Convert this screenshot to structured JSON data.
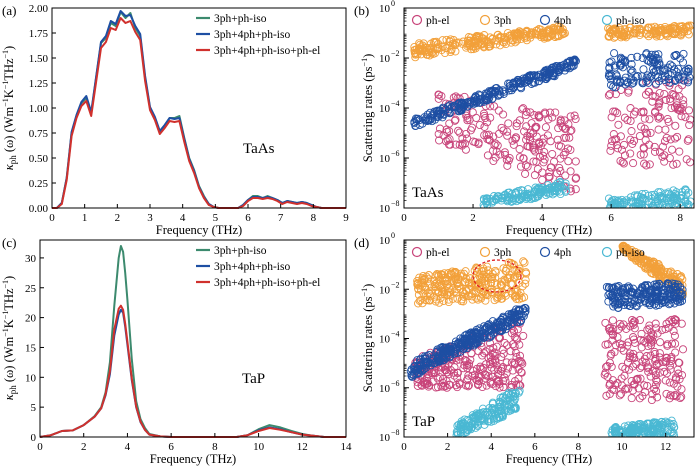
{
  "chart_data": [
    {
      "panel": "(a)",
      "type": "line",
      "annotation": "TaAs",
      "xlabel": "Frequency (THz)",
      "ylabel_main": "κ",
      "ylabel_sub": "ph",
      "ylabel_rest": " (ω) (Wm",
      "ylabel_sup1": "−1",
      "ylabel_mid": "K",
      "ylabel_sup2": "−1",
      "ylabel_end": "THz",
      "ylabel_sup3": "−1",
      "ylabel_close": ")",
      "xlim": [
        0,
        9
      ],
      "ylim": [
        0,
        2.0
      ],
      "xticks": [
        "0",
        "1",
        "2",
        "3",
        "4",
        "5",
        "6",
        "7",
        "8",
        "9"
      ],
      "yticks": [
        "0.00",
        "0.25",
        "0.50",
        "0.75",
        "1.00",
        "1.25",
        "1.50",
        "1.75",
        "2.00"
      ],
      "x": [
        0,
        0.15,
        0.3,
        0.45,
        0.6,
        0.75,
        0.9,
        1.05,
        1.2,
        1.35,
        1.5,
        1.65,
        1.8,
        1.95,
        2.1,
        2.25,
        2.4,
        2.55,
        2.7,
        2.85,
        3.0,
        3.15,
        3.3,
        3.45,
        3.6,
        3.75,
        3.9,
        4.05,
        4.2,
        4.35,
        4.5,
        4.65,
        4.8,
        4.95,
        5.1,
        5.25,
        5.4,
        5.55,
        5.7,
        5.85,
        6.0,
        6.15,
        6.3,
        6.45,
        6.6,
        6.75,
        6.9,
        7.05,
        7.2,
        7.35,
        7.5,
        7.65,
        7.8,
        7.95,
        8.1,
        8.25,
        8.5,
        9.0
      ],
      "series": [
        {
          "name": "3ph+ph-iso",
          "color": "#3c8a6e",
          "values": [
            0,
            0,
            0.05,
            0.3,
            0.75,
            0.92,
            1.05,
            1.1,
            0.95,
            1.3,
            1.65,
            1.7,
            1.85,
            1.82,
            1.96,
            1.9,
            1.95,
            1.8,
            1.72,
            1.3,
            1.0,
            0.9,
            0.76,
            0.82,
            0.9,
            0.9,
            0.92,
            0.7,
            0.5,
            0.38,
            0.22,
            0.12,
            0.04,
            0.01,
            0,
            0,
            0,
            0,
            0,
            0.03,
            0.08,
            0.12,
            0.12,
            0.1,
            0.12,
            0.1,
            0.08,
            0.05,
            0.07,
            0.06,
            0.05,
            0.06,
            0.05,
            0.03,
            0.01,
            0,
            0,
            0
          ]
        },
        {
          "name": "3ph+4ph+ph-iso",
          "color": "#1e4fa3",
          "values": [
            0,
            0,
            0.05,
            0.3,
            0.76,
            0.93,
            1.06,
            1.12,
            0.96,
            1.31,
            1.66,
            1.72,
            1.87,
            1.84,
            1.97,
            1.92,
            1.93,
            1.82,
            1.74,
            1.32,
            1.01,
            0.91,
            0.77,
            0.83,
            0.9,
            0.89,
            0.9,
            0.69,
            0.49,
            0.37,
            0.21,
            0.11,
            0.04,
            0.01,
            0,
            0,
            0,
            0,
            0,
            0.03,
            0.08,
            0.11,
            0.11,
            0.1,
            0.11,
            0.1,
            0.08,
            0.05,
            0.07,
            0.06,
            0.05,
            0.06,
            0.05,
            0.03,
            0.01,
            0,
            0,
            0
          ]
        },
        {
          "name": "3ph+4ph+ph-iso+ph-el",
          "color": "#d0312d",
          "values": [
            0,
            0,
            0.04,
            0.28,
            0.72,
            0.9,
            1.02,
            1.07,
            0.92,
            1.26,
            1.6,
            1.66,
            1.8,
            1.78,
            1.9,
            1.85,
            1.87,
            1.76,
            1.68,
            1.27,
            0.98,
            0.88,
            0.74,
            0.8,
            0.87,
            0.86,
            0.87,
            0.66,
            0.47,
            0.35,
            0.2,
            0.1,
            0.03,
            0.01,
            0,
            0,
            0,
            0,
            0,
            0.02,
            0.07,
            0.1,
            0.1,
            0.09,
            0.1,
            0.09,
            0.07,
            0.04,
            0.06,
            0.05,
            0.04,
            0.05,
            0.04,
            0.02,
            0.01,
            0,
            0,
            0
          ]
        }
      ],
      "legend_position": "top-right"
    },
    {
      "panel": "(b)",
      "type": "scatter",
      "annotation": "TaAs",
      "xlabel": "Frequency (THz)",
      "ylabel": "Scattering rates (ps",
      "ylabel_sup": "−1",
      "ylabel_close": ")",
      "yscale": "log",
      "xlim": [
        0,
        8.4
      ],
      "ylim_exp": [
        -8,
        0
      ],
      "xticks": [
        "0",
        "2",
        "4",
        "6",
        "8"
      ],
      "yticks_exp": [
        "−8",
        "−6",
        "−4",
        "−2",
        "0"
      ],
      "series": [
        {
          "name": "ph-el",
          "color": "#c8447a",
          "ranges": [
            [
              1.0,
              5.0,
              -5.3,
              -3.3,
              -7.5,
              -4.3
            ],
            [
              5.9,
              8.3,
              -6.3,
              -2.9,
              -6.3,
              -2.9
            ]
          ]
        },
        {
          "name": "3ph",
          "color": "#f2a03a",
          "ranges": [
            [
              0.3,
              4.7,
              -2.0,
              -1.4,
              -1.1,
              -0.7
            ],
            [
              5.9,
              8.3,
              -1.2,
              -0.8,
              -1.1,
              -0.7
            ]
          ]
        },
        {
          "name": "4ph",
          "color": "#1e4fa3",
          "ranges": [
            [
              0.3,
              5.0,
              -4.8,
              -4.4,
              -2.4,
              -2.0
            ],
            [
              5.9,
              8.3,
              -3.2,
              -1.8,
              -3.0,
              -1.8
            ]
          ]
        },
        {
          "name": "ph-iso",
          "color": "#4ab8d3",
          "ranges": [
            [
              2.3,
              4.7,
              -8.0,
              -7.6,
              -7.4,
              -6.9
            ],
            [
              5.9,
              8.3,
              -8.0,
              -7.6,
              -8.0,
              -7.2
            ]
          ]
        }
      ],
      "legend_position": "top"
    },
    {
      "panel": "(c)",
      "type": "line",
      "annotation": "TaP",
      "xlabel": "Frequency (THz)",
      "ylabel_main": "κ",
      "ylabel_sub": "ph",
      "ylabel_rest": " (ω) (Wm",
      "ylabel_sup1": "−1",
      "ylabel_mid": "K",
      "ylabel_sup2": "−1",
      "ylabel_end": "THz",
      "ylabel_sup3": "−1",
      "ylabel_close": ")",
      "xlim": [
        0,
        14
      ],
      "ylim": [
        0,
        33
      ],
      "xticks": [
        "0",
        "2",
        "4",
        "6",
        "8",
        "10",
        "12",
        "14"
      ],
      "yticks": [
        "0",
        "5",
        "10",
        "15",
        "20",
        "25",
        "30"
      ],
      "x": [
        0,
        0.5,
        1.0,
        1.5,
        2.0,
        2.5,
        2.8,
        3.0,
        3.2,
        3.4,
        3.6,
        3.7,
        3.8,
        3.9,
        4.0,
        4.2,
        4.4,
        4.6,
        4.8,
        5.0,
        5.5,
        6.0,
        7.0,
        8.0,
        9.0,
        9.5,
        10.0,
        10.5,
        11.0,
        11.5,
        12.0,
        12.5,
        13.0,
        14.0
      ],
      "series": [
        {
          "name": "3ph+ph-iso",
          "color": "#3c8a6e",
          "values": [
            0,
            0.3,
            1.0,
            1.1,
            2.0,
            3.5,
            5.0,
            7.5,
            12.5,
            22.0,
            30.0,
            32.0,
            31.0,
            27.5,
            23.0,
            13.0,
            6.0,
            3.0,
            1.5,
            0.5,
            0.1,
            0,
            0,
            0,
            0,
            0.3,
            1.3,
            2.0,
            1.6,
            1.0,
            0.5,
            0.2,
            0,
            0
          ]
        },
        {
          "name": "3ph+4ph+ph-iso",
          "color": "#1e4fa3",
          "values": [
            0,
            0.3,
            1.0,
            1.1,
            2.0,
            3.4,
            4.8,
            7.0,
            10.5,
            17.0,
            20.5,
            21.3,
            20.8,
            18.5,
            15.5,
            9.5,
            5.0,
            2.5,
            1.2,
            0.4,
            0.1,
            0,
            0,
            0,
            0,
            0.3,
            1.1,
            1.6,
            1.3,
            0.8,
            0.4,
            0.2,
            0,
            0
          ]
        },
        {
          "name": "3ph+4ph+ph-iso+ph-el",
          "color": "#d0312d",
          "values": [
            0,
            0.3,
            1.0,
            1.1,
            2.0,
            3.4,
            4.8,
            7.2,
            11.0,
            18.0,
            21.5,
            22.0,
            21.3,
            19.0,
            16.0,
            9.8,
            5.1,
            2.6,
            1.2,
            0.4,
            0.1,
            0,
            0,
            0,
            0,
            0.3,
            1.0,
            1.5,
            1.2,
            0.8,
            0.4,
            0.2,
            0,
            0
          ]
        }
      ],
      "legend_position": "top-right"
    },
    {
      "panel": "(d)",
      "type": "scatter",
      "annotation": "TaP",
      "xlabel": "Frequency (THz)",
      "ylabel": "Scattering rates (ps",
      "ylabel_sup": "−1",
      "ylabel_close": ")",
      "yscale": "log",
      "xlim": [
        0,
        13.3
      ],
      "ylim_exp": [
        -8,
        0
      ],
      "xticks": [
        "0",
        "2",
        "4",
        "6",
        "8",
        "10",
        "12"
      ],
      "yticks_exp": [
        "−8",
        "−6",
        "−4",
        "−2",
        "0"
      ],
      "series": [
        {
          "name": "ph-el",
          "color": "#c8447a",
          "ranges": [
            [
              0.5,
              5.5,
              -6.0,
              -4.8,
              -6.0,
              -3.2
            ],
            [
              9.2,
              12.8,
              -6.5,
              -3.2,
              -6.5,
              -3.2
            ]
          ]
        },
        {
          "name": "3ph",
          "color": "#f2a03a",
          "ranges": [
            [
              0.6,
              5.6,
              -2.6,
              -1.5,
              -2.4,
              -0.8
            ],
            [
              10.0,
              12.8,
              -0.4,
              -0.2,
              -2.4,
              -1.5
            ]
          ]
        },
        {
          "name": "4ph",
          "color": "#1e4fa3",
          "ranges": [
            [
              0.3,
              5.6,
              -5.6,
              -5.0,
              -3.2,
              -2.6
            ],
            [
              9.2,
              12.8,
              -2.8,
              -1.9,
              -2.6,
              -1.7
            ]
          ]
        },
        {
          "name": "ph-iso",
          "color": "#4ab8d3",
          "ranges": [
            [
              2.4,
              5.3,
              -8.0,
              -7.5,
              -6.9,
              -5.9
            ],
            [
              9.5,
              12.4,
              -8.0,
              -7.6,
              -8.0,
              -7.3
            ]
          ]
        }
      ],
      "legend_position": "top"
    }
  ]
}
